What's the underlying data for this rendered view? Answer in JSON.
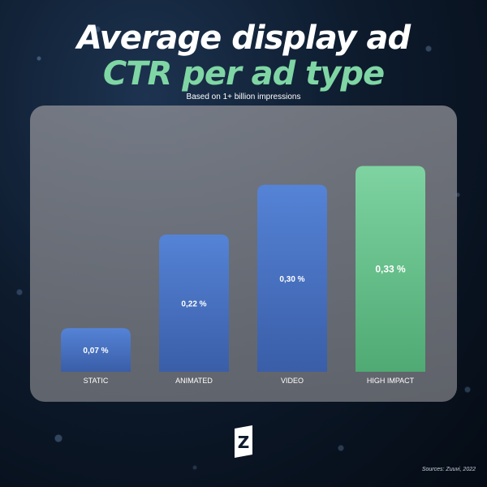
{
  "title_line1": "Average display ad",
  "title_line2": "CTR per ad type",
  "subtitle": "Based on 1+ billion impressions",
  "source": "Sources: Zuuvi, 2022",
  "logo_glyph": "Z",
  "colors": {
    "bar_blue": "#5583d6",
    "bar_blue_dark": "#3a5ea8",
    "bar_green": "#7ed3a1",
    "bar_green_dark": "#4faa73",
    "title_green": "#7fd6a4"
  },
  "chart_data": {
    "type": "bar",
    "title": "Average display ad CTR per ad type",
    "subtitle": "Based on 1+ billion impressions",
    "categories": [
      "STATIC",
      "ANIMATED",
      "VIDEO",
      "HIGH IMPACT"
    ],
    "values": [
      0.07,
      0.22,
      0.3,
      0.33
    ],
    "labels": [
      "0,07 %",
      "0,22 %",
      "0,30 %",
      "0,33 %"
    ],
    "highlight": [
      false,
      false,
      false,
      true
    ],
    "ylim": [
      0,
      0.345
    ],
    "grid": false,
    "legend": "none"
  }
}
